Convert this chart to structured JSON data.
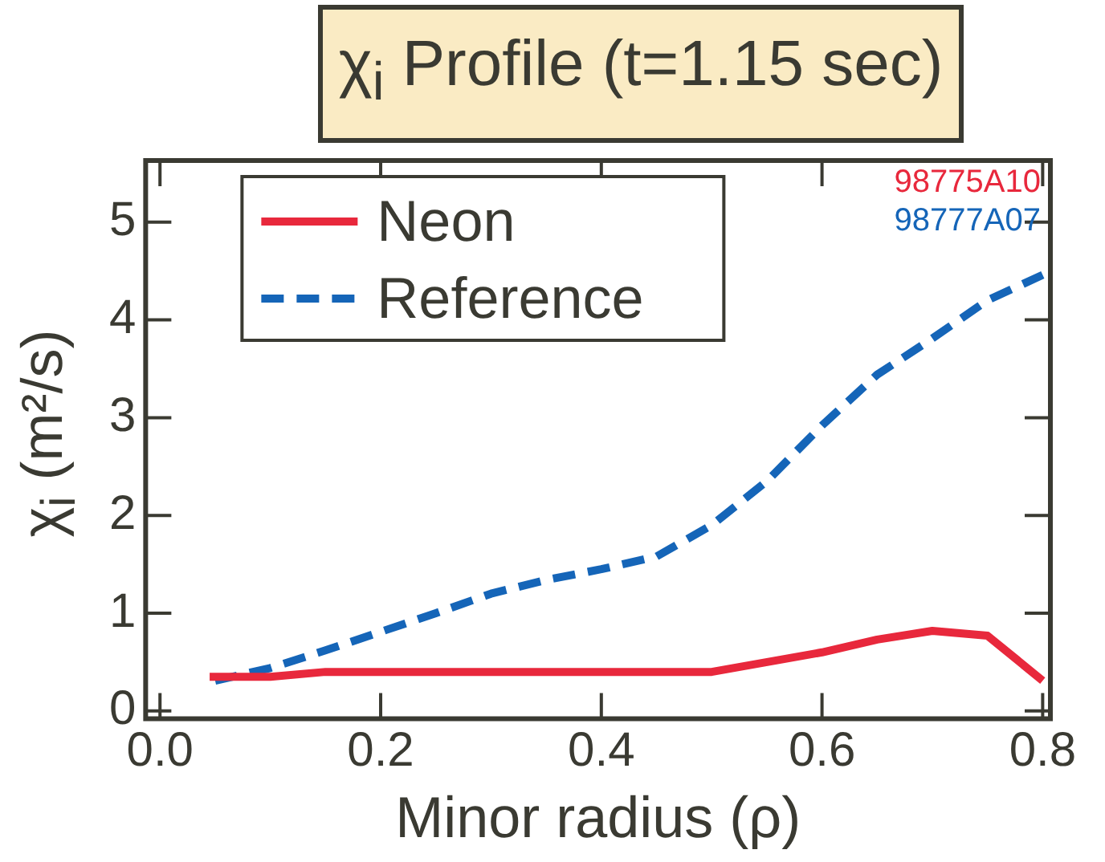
{
  "chart_data": {
    "type": "line",
    "title": "χ$_{i}$ Profile (t=1.15 sec)",
    "xlabel": "Minor radius (ρ)",
    "ylabel": "χ$_{i}$ (m²/s)",
    "xlim": [
      -0.013,
      0.807
    ],
    "xticks": [
      {
        "value": 0,
        "label": "0.0"
      },
      0.2,
      0.4,
      0.6,
      0.8
    ],
    "ylim": [
      -0.08,
      5.63
    ],
    "yticks": [
      0,
      1,
      2,
      3,
      4,
      5
    ],
    "grid": false,
    "legend": "top left",
    "annotations": [
      "98775A10",
      "98777A07"
    ],
    "series": [
      {
        "name": "Neon",
        "color": "#e8283c",
        "line_style": "solid",
        "x": [
          0.045,
          0.1,
          0.15,
          0.5,
          0.6,
          0.65,
          0.7,
          0.75,
          0.8
        ],
        "values": [
          0.35,
          0.35,
          0.4,
          0.4,
          0.6,
          0.73,
          0.82,
          0.77,
          0.31
        ]
      },
      {
        "name": "Reference",
        "color": "#1565b8",
        "line_style": "dashed",
        "x": [
          0.05,
          0.1,
          0.15,
          0.2,
          0.25,
          0.3,
          0.35,
          0.4,
          0.45,
          0.5,
          0.55,
          0.6,
          0.65,
          0.7,
          0.75,
          0.8
        ],
        "values": [
          0.31,
          0.44,
          0.62,
          0.81,
          1.0,
          1.2,
          1.34,
          1.45,
          1.58,
          1.9,
          2.35,
          2.92,
          3.44,
          3.81,
          4.2,
          4.46
        ]
      }
    ]
  }
}
